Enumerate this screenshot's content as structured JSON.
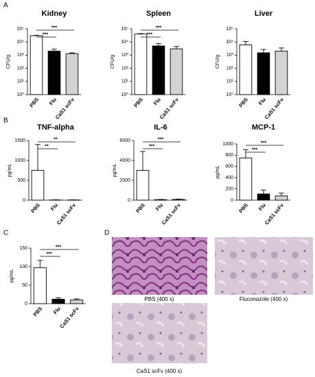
{
  "panel_labels": [
    "A",
    "B",
    "C",
    "D"
  ],
  "chart_data": [
    {
      "type": "bar",
      "title": "Kidney",
      "y_label": "CFU/g",
      "log_scale": true,
      "categories": [
        "PBS",
        "Flu",
        "CaS1 scFv"
      ],
      "values": [
        30000,
        2000,
        1300
      ],
      "errors": [
        2000,
        800,
        200
      ],
      "colors": [
        "#ffffff",
        "#000000",
        "#d3d3d3"
      ],
      "ylim": [
        1,
        100000
      ],
      "yticks": [
        {
          "value": 1,
          "label": "10⁰"
        },
        {
          "value": 10,
          "label": "10¹"
        },
        {
          "value": 100,
          "label": "10²"
        },
        {
          "value": 1000,
          "label": "10³"
        },
        {
          "value": 10000,
          "label": "10⁴"
        },
        {
          "value": 100000,
          "label": "10⁵"
        }
      ],
      "significance": [
        "***",
        "***"
      ]
    },
    {
      "type": "bar",
      "title": "Spleen",
      "y_label": "CFU/g",
      "log_scale": true,
      "categories": [
        "PBS",
        "Flu",
        "CaS1 scFv"
      ],
      "values": [
        40000,
        5000,
        3000
      ],
      "errors": [
        3000,
        2500,
        1500
      ],
      "colors": [
        "#ffffff",
        "#000000",
        "#d3d3d3"
      ],
      "ylim": [
        1,
        100000
      ],
      "yticks": [
        {
          "value": 1,
          "label": "10⁰"
        },
        {
          "value": 10,
          "label": "10¹"
        },
        {
          "value": 100,
          "label": "10²"
        },
        {
          "value": 1000,
          "label": "10³"
        },
        {
          "value": 10000,
          "label": "10⁴"
        },
        {
          "value": 100000,
          "label": "10⁵"
        }
      ],
      "significance": [
        "***",
        "***"
      ]
    },
    {
      "type": "bar",
      "title": "Liver",
      "y_label": "CFU/g",
      "log_scale": true,
      "categories": [
        "PBS",
        "Flu",
        "CaS1 scFv"
      ],
      "values": [
        6000,
        1500,
        2000
      ],
      "errors": [
        5000,
        1200,
        1500
      ],
      "colors": [
        "#ffffff",
        "#000000",
        "#d3d3d3"
      ],
      "ylim": [
        1,
        100000
      ],
      "yticks": [
        {
          "value": 1,
          "label": "10⁰"
        },
        {
          "value": 10,
          "label": "10¹"
        },
        {
          "value": 100,
          "label": "10²"
        },
        {
          "value": 1000,
          "label": "10³"
        },
        {
          "value": 10000,
          "label": "10⁴"
        },
        {
          "value": 100000,
          "label": "10⁵"
        }
      ]
    },
    {
      "type": "bar",
      "title": "TNF-alpha",
      "y_label": "pg/mL",
      "categories": [
        "PBS",
        "Flu",
        "CaS1 scFv"
      ],
      "values": [
        750,
        5,
        5
      ],
      "errors": [
        650,
        3,
        3
      ],
      "colors": [
        "#ffffff",
        "#000000",
        "#d3d3d3"
      ],
      "ylim": [
        0,
        1500
      ],
      "yticks": [
        0,
        500,
        1000,
        1500
      ],
      "significance": [
        "**",
        "**"
      ]
    },
    {
      "type": "bar",
      "title": "IL-6",
      "y_label": "pg/mL",
      "categories": [
        "PBS",
        "Flu",
        "CaS1 scFv"
      ],
      "values": [
        3000,
        50,
        80
      ],
      "errors": [
        1900,
        20,
        30
      ],
      "colors": [
        "#ffffff",
        "#000000",
        "#d3d3d3"
      ],
      "ylim": [
        0,
        6000
      ],
      "yticks": [
        0,
        2000,
        4000,
        6000
      ],
      "significance": [
        "***",
        "***"
      ]
    },
    {
      "type": "bar",
      "title": "MCP-1",
      "y_label": "pg/mL",
      "categories": [
        "PBS",
        "Flu",
        "CaS1 scFv"
      ],
      "values": [
        750,
        110,
        75
      ],
      "errors": [
        150,
        70,
        50
      ],
      "colors": [
        "#ffffff",
        "#000000",
        "#d3d3d3"
      ],
      "ylim": [
        0,
        1000
      ],
      "yticks": [
        0,
        200,
        400,
        600,
        800,
        1000
      ],
      "significance": [
        "***",
        "***"
      ]
    },
    {
      "type": "bar",
      "y_label": "pg/mL",
      "categories": [
        "PBS",
        "Flu",
        "CaS1 scFv"
      ],
      "values": [
        97,
        12,
        10
      ],
      "errors": [
        20,
        4,
        3
      ],
      "colors": [
        "#ffffff",
        "#000000",
        "#d3d3d3"
      ],
      "ylim": [
        0,
        150
      ],
      "yticks": [
        0,
        50,
        100,
        150
      ],
      "significance": [
        "***",
        "***"
      ]
    }
  ],
  "micrographs": [
    {
      "caption": "PBS (400 x)"
    },
    {
      "caption": "Fluconazole (400 x)"
    },
    {
      "caption": "CaS1 scFv (400 x)"
    }
  ]
}
